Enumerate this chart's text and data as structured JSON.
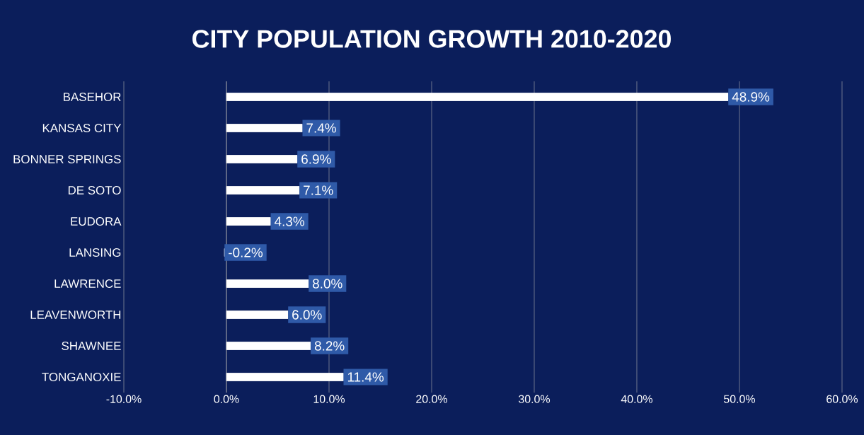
{
  "chart_data": {
    "type": "bar",
    "orientation": "horizontal",
    "title": "CITY POPULATION GROWTH 2010-2020",
    "categories": [
      "BASEHOR",
      "KANSAS CITY",
      "BONNER SPRINGS",
      "DE SOTO",
      "EUDORA",
      "LANSING",
      "LAWRENCE",
      "LEAVENWORTH",
      "SHAWNEE",
      "TONGANOXIE"
    ],
    "values": [
      48.9,
      7.4,
      6.9,
      7.1,
      4.3,
      -0.2,
      8.0,
      6.0,
      8.2,
      11.4
    ],
    "value_labels": [
      "48.9%",
      "7.4%",
      "6.9%",
      "7.1%",
      "4.3%",
      "-0.2%",
      "8.0%",
      "6.0%",
      "8.2%",
      "11.4%"
    ],
    "color": "#ffffff",
    "xlim": [
      -10,
      60
    ],
    "xticks": [
      {
        "value": -10,
        "label": "-10.0%"
      },
      {
        "value": 0,
        "label": "0.0%"
      },
      {
        "value": 10,
        "label": "10.0%"
      },
      {
        "value": 20,
        "label": "20.0%"
      },
      {
        "value": 30,
        "label": "30.0%"
      },
      {
        "value": 40,
        "label": "40.0%"
      },
      {
        "value": 50,
        "label": "50.0%"
      },
      {
        "value": 60,
        "label": "60.0%"
      }
    ],
    "grid": "x"
  }
}
